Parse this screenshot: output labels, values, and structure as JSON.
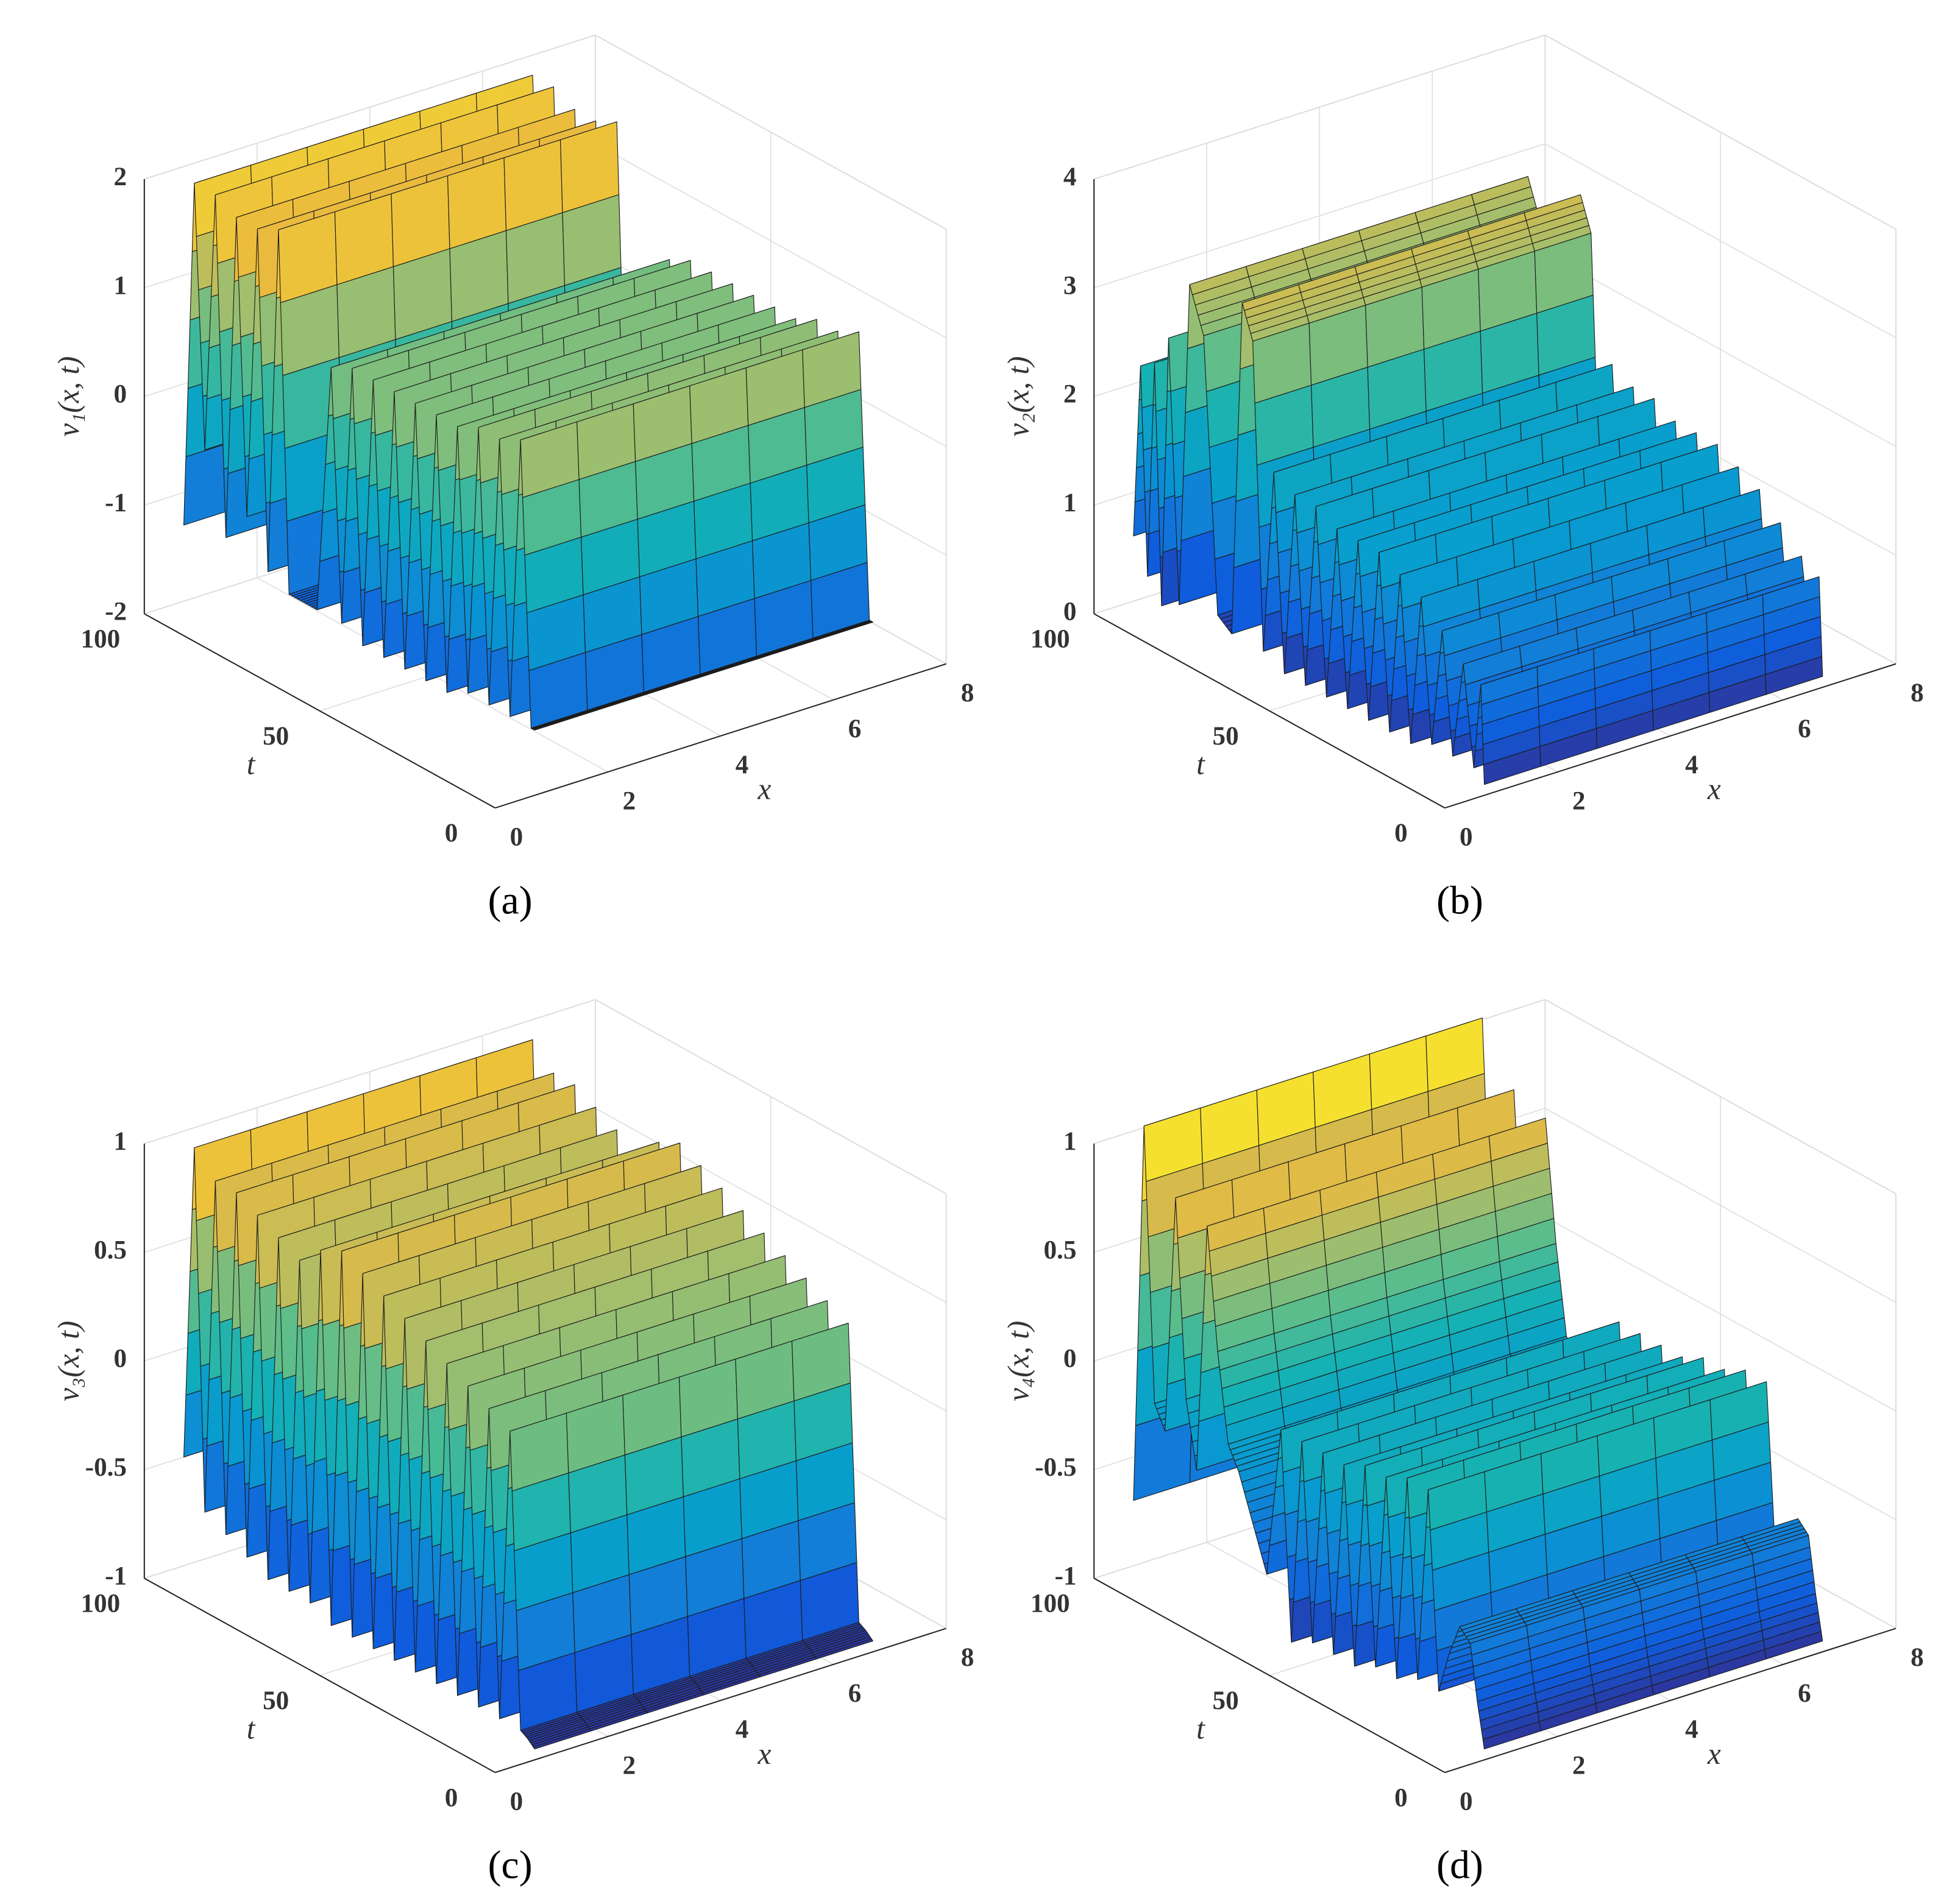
{
  "chart_data": [
    {
      "type": "surface",
      "caption": "(a)",
      "xlabel": "x",
      "ylabel": "t",
      "zlabel": "v₁(x, t)",
      "xlim": [
        0,
        8
      ],
      "xticks": [
        0,
        2,
        4,
        6,
        8
      ],
      "ylim": [
        0,
        100
      ],
      "yticks": [
        0,
        50,
        100
      ],
      "zlim": [
        -2,
        2
      ],
      "zticks": [
        -2,
        -1,
        0,
        1,
        2
      ],
      "grid": true,
      "x_span": [
        0.7,
        6.7
      ],
      "t": [
        100,
        97,
        94,
        91,
        88,
        85,
        82,
        79,
        76,
        73,
        70,
        66,
        62,
        58,
        55,
        52,
        49,
        46,
        43,
        40,
        37,
        34,
        31,
        28,
        25,
        22,
        19,
        16,
        13,
        10,
        7,
        4,
        1,
        0
      ],
      "values": [
        -1.3,
        1.9,
        -0.5,
        1.9,
        -1.2,
        1.8,
        -0.9,
        1.8,
        -1.3,
        1.9,
        -1.4,
        -1.4,
        -1.4,
        0.9,
        -1.4,
        1.0,
        -1.5,
        1.0,
        -1.5,
        1.0,
        -1.5,
        1.0,
        -1.5,
        1.0,
        -1.5,
        1.0,
        -1.4,
        1.1,
        -1.4,
        1.1,
        -1.4,
        1.2,
        -1.4,
        -1.4
      ]
    },
    {
      "type": "surface",
      "caption": "(b)",
      "xlabel": "x",
      "ylabel": "t",
      "zlabel": "v₂(x, t)",
      "xlim": [
        0,
        8
      ],
      "xticks": [
        0,
        2,
        4,
        6,
        8
      ],
      "ylim": [
        0,
        100
      ],
      "yticks": [
        0,
        50,
        100
      ],
      "zlim": [
        0,
        4
      ],
      "zticks": [
        0,
        1,
        2,
        3,
        4
      ],
      "grid": true,
      "x_span": [
        0.7,
        6.7
      ],
      "t": [
        100,
        98,
        96,
        94,
        92,
        90,
        87,
        84,
        80,
        76,
        72,
        69,
        66,
        63,
        60,
        57,
        54,
        51,
        48,
        45,
        42,
        39,
        36,
        33,
        30,
        27,
        24,
        21,
        18,
        15,
        12,
        9,
        6,
        3,
        1,
        0
      ],
      "values": [
        0.6,
        2.2,
        0.3,
        2.3,
        0.1,
        2.6,
        0.2,
        3.2,
        2.8,
        0.3,
        0.2,
        3.3,
        3.0,
        0.2,
        1.9,
        0.1,
        1.8,
        0.1,
        1.8,
        0.1,
        1.7,
        0.1,
        1.7,
        0.1,
        1.7,
        0.1,
        1.6,
        0.1,
        1.5,
        0.2,
        1.3,
        0.2,
        1.1,
        0.2,
        1.0,
        0.1
      ]
    },
    {
      "type": "surface",
      "caption": "(c)",
      "xlabel": "x",
      "ylabel": "t",
      "zlabel": "v₃(x, t)",
      "xlim": [
        0,
        8
      ],
      "xticks": [
        0,
        2,
        4,
        6,
        8
      ],
      "ylim": [
        0,
        100
      ],
      "yticks": [
        0,
        50,
        100
      ],
      "zlim": [
        -1,
        1
      ],
      "zticks": [
        -1,
        -0.5,
        0,
        0.5,
        1
      ],
      "grid": true,
      "x_span": [
        0.7,
        6.7
      ],
      "t": [
        100,
        97,
        94,
        91,
        88,
        85,
        82,
        79,
        76,
        73,
        70,
        67,
        64,
        61,
        58,
        55,
        52,
        49,
        46,
        43,
        40,
        37,
        34,
        31,
        28,
        25,
        22,
        19,
        16,
        13,
        10,
        7,
        4,
        2,
        0
      ],
      "values": [
        -0.5,
        0.95,
        -0.7,
        0.85,
        -0.75,
        0.85,
        -0.8,
        0.8,
        -0.85,
        0.75,
        -0.85,
        0.7,
        -0.85,
        0.8,
        -0.9,
        0.85,
        -0.9,
        0.8,
        -0.9,
        0.75,
        -0.9,
        0.7,
        -0.9,
        0.65,
        -0.9,
        0.6,
        -0.9,
        0.55,
        -0.9,
        0.5,
        -0.9,
        0.45,
        -0.9,
        -0.92,
        -0.95
      ]
    },
    {
      "type": "surface",
      "caption": "(d)",
      "xlabel": "x",
      "ylabel": "t",
      "zlabel": "v₄(x, t)",
      "xlim": [
        0,
        8
      ],
      "xticks": [
        0,
        2,
        4,
        6,
        8
      ],
      "ylim": [
        0,
        100
      ],
      "yticks": [
        0,
        50,
        100
      ],
      "zlim": [
        -1,
        1
      ],
      "zticks": [
        -1,
        -0.5,
        0,
        0.5,
        1
      ],
      "grid": true,
      "x_span": [
        0.7,
        6.7
      ],
      "t": [
        100,
        97,
        94,
        91,
        88,
        85,
        82,
        79,
        76,
        73,
        70,
        66,
        62,
        58,
        55,
        52,
        49,
        46,
        43,
        40,
        37,
        34,
        31,
        28,
        25,
        22,
        19,
        16,
        13,
        10,
        7,
        4,
        2,
        0
      ],
      "values": [
        -0.7,
        1.05,
        -0.2,
        -0.3,
        0.8,
        -0.1,
        -0.4,
        0.75,
        0.2,
        -0.2,
        -0.3,
        -0.5,
        -0.7,
        0,
        -0.95,
        0,
        -0.9,
        0,
        -0.9,
        0,
        -0.9,
        0.05,
        -0.85,
        0.05,
        -0.85,
        0.1,
        -0.8,
        0.1,
        -0.8,
        -0.6,
        -0.45,
        -0.5,
        -0.75,
        -0.95
      ]
    }
  ]
}
